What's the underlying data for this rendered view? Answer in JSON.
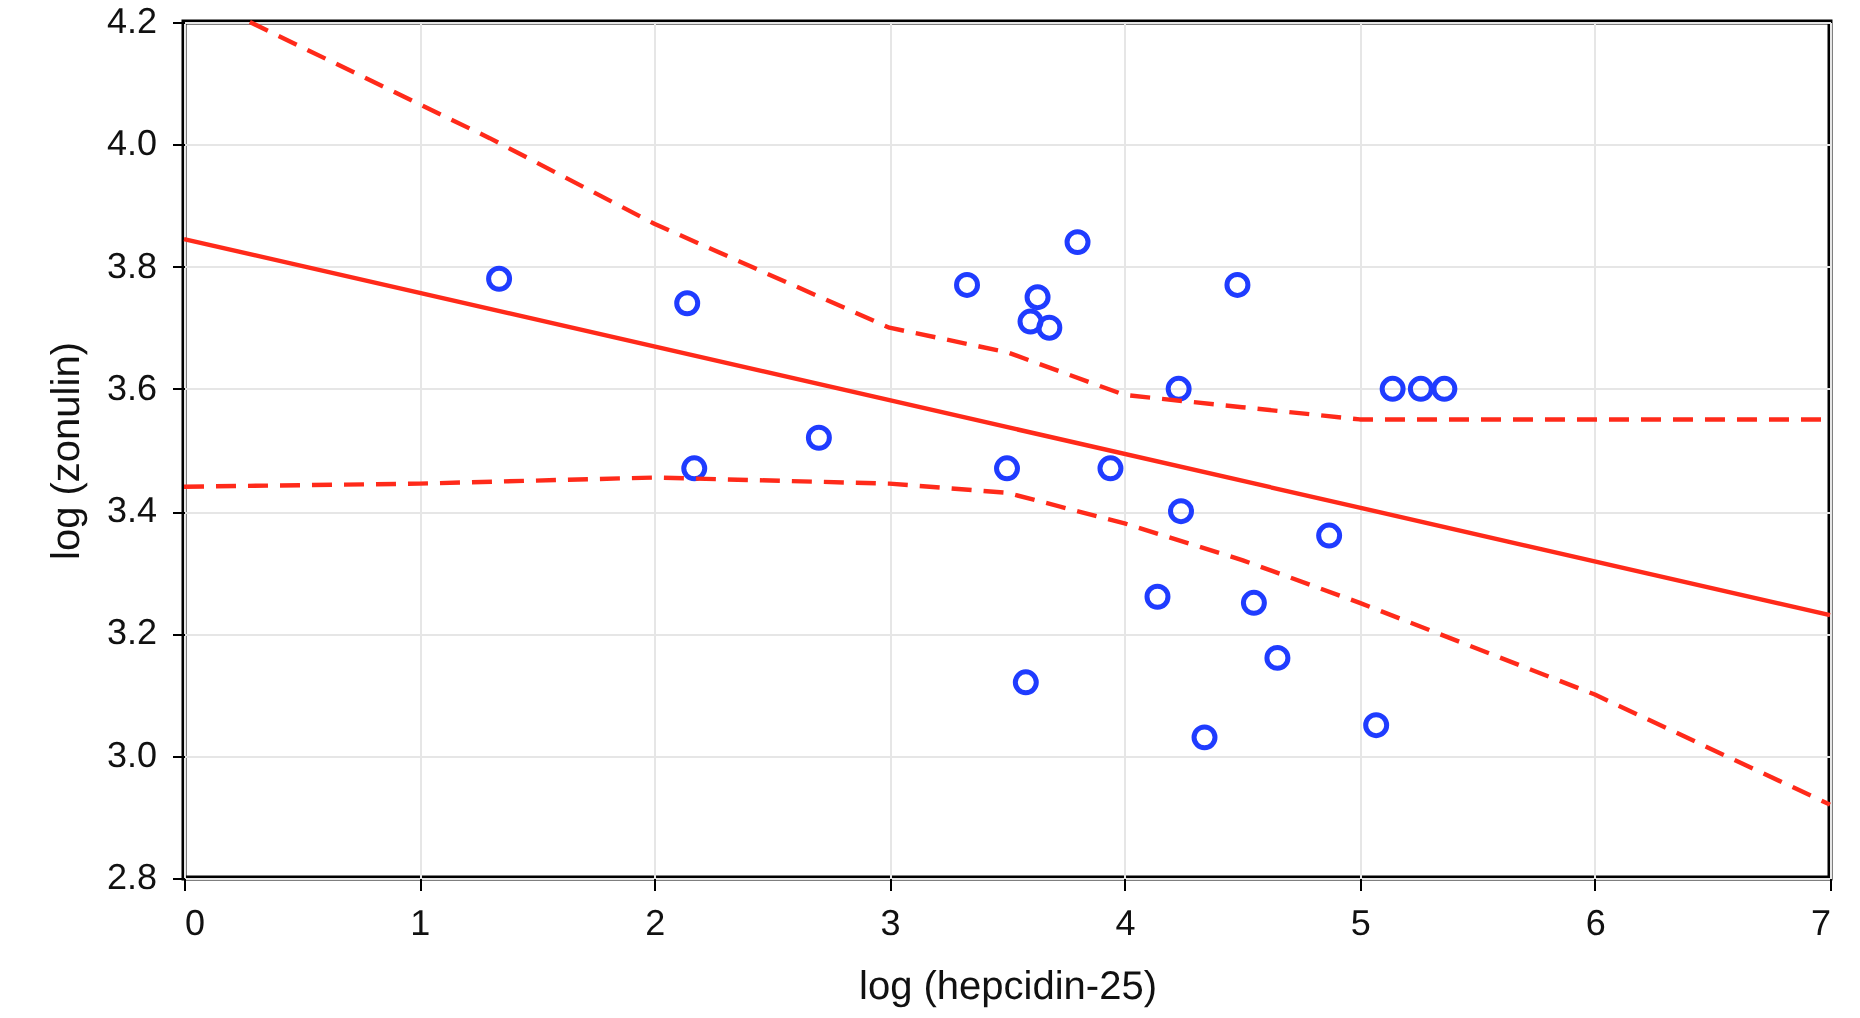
{
  "chart_data": {
    "type": "scatter",
    "xlabel": "log (hepcidin-25)",
    "ylabel": "log (zonulin)",
    "xlim": [
      0,
      7
    ],
    "ylim": [
      2.8,
      4.2
    ],
    "xticks": [
      0,
      1,
      2,
      3,
      4,
      5,
      6,
      7
    ],
    "yticks": [
      2.8,
      {
        "value": 3,
        "label": "3.0"
      },
      3.2,
      3.4,
      3.6,
      3.8,
      {
        "value": 4,
        "label": "4.0"
      },
      4.2
    ],
    "grid": true,
    "series": [
      {
        "marker": "circle",
        "color": "#1f3cff",
        "x": [
          1.34,
          2.14,
          2.17,
          2.7,
          3.33,
          3.8,
          3.63,
          3.6,
          3.68,
          4.48,
          4.23,
          5.14,
          5.26,
          5.36,
          3.5,
          3.94,
          4.24,
          4.87,
          4.14,
          4.55,
          4.65,
          3.58,
          4.34,
          5.07
        ],
        "values": [
          3.78,
          3.74,
          3.47,
          3.52,
          3.77,
          3.84,
          3.75,
          3.71,
          3.7,
          3.77,
          3.6,
          3.6,
          3.6,
          3.6,
          3.47,
          3.47,
          3.4,
          3.36,
          3.26,
          3.25,
          3.16,
          3.12,
          3.03,
          3.05
        ]
      },
      {
        "type": "line",
        "marker": "none",
        "color": "#ff2a1a",
        "line_style": "solid",
        "x": [
          0,
          7
        ],
        "values": [
          3.845,
          3.23
        ]
      },
      {
        "type": "line",
        "marker": "none",
        "color": "#ff2a1a",
        "line_style": "dashed",
        "x": [
          0.28,
          1.3,
          2,
          3,
          3.5,
          4,
          4.5,
          5,
          6,
          7
        ],
        "values": [
          4.2,
          4.01,
          3.87,
          3.7,
          3.66,
          3.59,
          3.57,
          3.55,
          3.55,
          3.55
        ]
      },
      {
        "type": "line",
        "marker": "none",
        "color": "#ff2a1a",
        "line_style": "dashed",
        "x": [
          0,
          1,
          2,
          3,
          3.5,
          4,
          4.5,
          5,
          6,
          7
        ],
        "values": [
          3.44,
          3.445,
          3.455,
          3.445,
          3.43,
          3.38,
          3.32,
          3.25,
          3.1,
          2.92
        ]
      }
    ]
  }
}
